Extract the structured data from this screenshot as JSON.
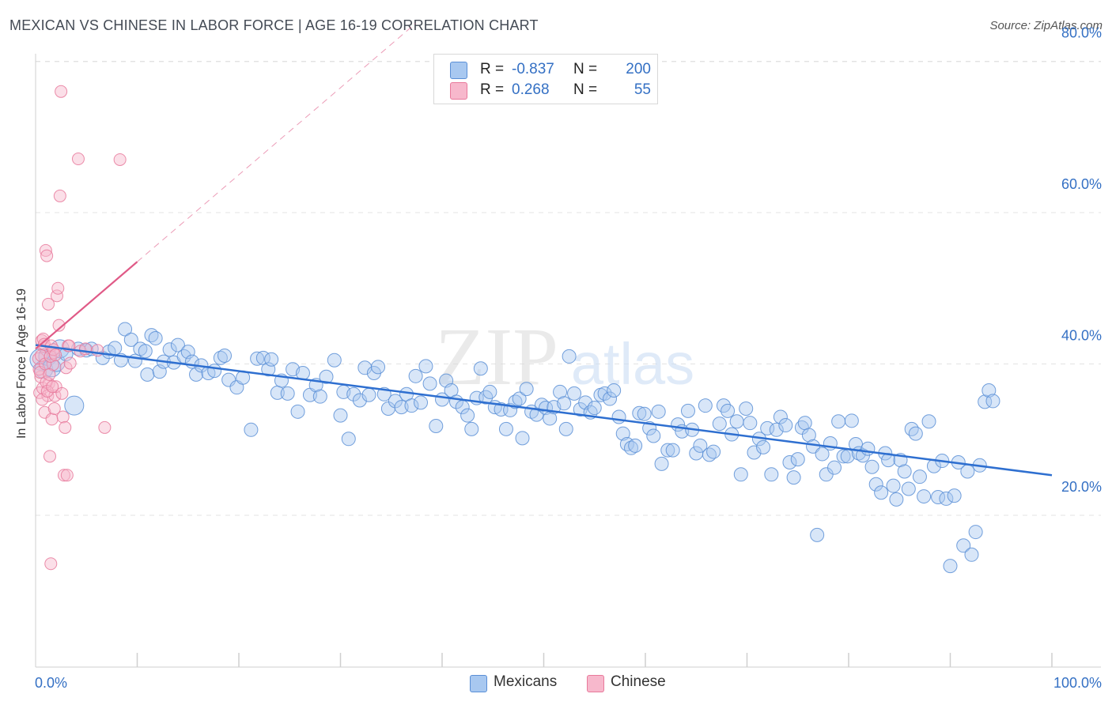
{
  "title": "MEXICAN VS CHINESE IN LABOR FORCE | AGE 16-19 CORRELATION CHART",
  "source": "Source: ZipAtlas.com",
  "watermark": {
    "zip": "ZIP",
    "atlas": "atlas"
  },
  "legend": [
    {
      "r_label": "R =",
      "r_value": "-0.837",
      "n_label": "N =",
      "n_value": "200"
    },
    {
      "r_label": "R =",
      "r_value": "0.268",
      "n_label": "N =",
      "n_value": "55"
    }
  ],
  "bottom_legend": [
    "Mexicans",
    "Chinese"
  ],
  "colors": {
    "mexicans_fill": "#a8c8f0",
    "mexicans_stroke": "#5a8fd6",
    "mexicans_line": "#2e6fd0",
    "chinese_fill": "#f7b8cc",
    "chinese_stroke": "#e8799b",
    "chinese_line": "#e05a87",
    "grid": "#e3e3e3",
    "tick_label": "#3470c4"
  },
  "chart_data": {
    "type": "scatter",
    "title": "MEXICAN VS CHINESE IN LABOR FORCE | AGE 16-19 CORRELATION CHART",
    "xlabel": "",
    "ylabel": "In Labor Force | Age 16-19",
    "xlim": [
      0,
      100
    ],
    "ylim": [
      0,
      84
    ],
    "x_tick_labels": [
      "0.0%",
      "100.0%"
    ],
    "y_ticks": [
      20,
      40,
      60,
      80
    ],
    "y_tick_labels": [
      "20.0%",
      "40.0%",
      "60.0%",
      "80.0%"
    ],
    "grid": true,
    "series": [
      {
        "name": "Mexicans",
        "R": -0.837,
        "N": 200,
        "trend": {
          "x": [
            0,
            100
          ],
          "y": [
            42.5,
            25.3
          ],
          "style": "solid"
        },
        "points": [
          [
            0.5,
            40.6
          ],
          [
            0.8,
            39.3
          ],
          [
            1.2,
            41.0
          ],
          [
            1.6,
            39.5
          ],
          [
            2.0,
            40.2
          ],
          [
            2.4,
            42.0
          ],
          [
            3.0,
            41.3
          ],
          [
            3.8,
            34.5
          ],
          [
            4.2,
            42.0
          ],
          [
            5.0,
            41.8
          ],
          [
            5.5,
            42.0
          ],
          [
            6.6,
            40.8
          ],
          [
            7.2,
            41.6
          ],
          [
            7.8,
            42.1
          ],
          [
            8.4,
            40.5
          ],
          [
            8.8,
            44.6
          ],
          [
            9.4,
            43.2
          ],
          [
            9.8,
            40.4
          ],
          [
            10.3,
            42.0
          ],
          [
            10.8,
            41.7
          ],
          [
            11.0,
            38.6
          ],
          [
            11.4,
            43.8
          ],
          [
            11.8,
            43.4
          ],
          [
            12.2,
            39.0
          ],
          [
            12.6,
            40.3
          ],
          [
            13.2,
            41.9
          ],
          [
            13.6,
            40.2
          ],
          [
            14.0,
            42.5
          ],
          [
            14.6,
            41.0
          ],
          [
            15.0,
            41.6
          ],
          [
            15.4,
            40.3
          ],
          [
            15.8,
            38.6
          ],
          [
            16.3,
            39.8
          ],
          [
            17.0,
            38.8
          ],
          [
            17.6,
            39.1
          ],
          [
            18.2,
            40.8
          ],
          [
            18.6,
            41.1
          ],
          [
            19.0,
            37.9
          ],
          [
            19.8,
            36.9
          ],
          [
            20.4,
            38.2
          ],
          [
            21.2,
            31.3
          ],
          [
            21.8,
            40.7
          ],
          [
            22.4,
            40.8
          ],
          [
            22.9,
            39.3
          ],
          [
            23.2,
            40.6
          ],
          [
            23.8,
            36.2
          ],
          [
            24.2,
            37.8
          ],
          [
            24.8,
            36.1
          ],
          [
            25.3,
            39.3
          ],
          [
            25.8,
            33.7
          ],
          [
            26.3,
            38.8
          ],
          [
            27.0,
            35.9
          ],
          [
            27.6,
            37.2
          ],
          [
            28.0,
            35.7
          ],
          [
            28.6,
            38.3
          ],
          [
            29.4,
            40.5
          ],
          [
            30.0,
            33.2
          ],
          [
            30.3,
            36.3
          ],
          [
            30.8,
            30.1
          ],
          [
            31.3,
            36.0
          ],
          [
            31.9,
            35.2
          ],
          [
            32.4,
            39.5
          ],
          [
            32.8,
            35.9
          ],
          [
            33.3,
            38.8
          ],
          [
            33.7,
            39.6
          ],
          [
            34.3,
            36.0
          ],
          [
            34.7,
            34.1
          ],
          [
            35.4,
            35.1
          ],
          [
            36.0,
            34.3
          ],
          [
            36.5,
            36.0
          ],
          [
            37.0,
            34.5
          ],
          [
            37.4,
            38.4
          ],
          [
            37.9,
            34.9
          ],
          [
            38.4,
            39.7
          ],
          [
            38.8,
            37.4
          ],
          [
            39.4,
            31.8
          ],
          [
            40.0,
            35.3
          ],
          [
            40.4,
            37.8
          ],
          [
            40.9,
            36.5
          ],
          [
            41.4,
            35.0
          ],
          [
            42.0,
            34.3
          ],
          [
            42.5,
            33.2
          ],
          [
            42.9,
            31.4
          ],
          [
            43.4,
            35.5
          ],
          [
            43.8,
            39.4
          ],
          [
            44.3,
            35.6
          ],
          [
            44.7,
            36.3
          ],
          [
            45.2,
            34.3
          ],
          [
            45.8,
            34.0
          ],
          [
            46.3,
            31.4
          ],
          [
            46.7,
            33.9
          ],
          [
            47.2,
            35.0
          ],
          [
            47.6,
            35.4
          ],
          [
            47.9,
            30.2
          ],
          [
            48.3,
            36.7
          ],
          [
            48.8,
            33.7
          ],
          [
            49.3,
            33.3
          ],
          [
            49.8,
            34.6
          ],
          [
            50.2,
            34.2
          ],
          [
            50.6,
            32.8
          ],
          [
            51.0,
            34.3
          ],
          [
            51.6,
            36.3
          ],
          [
            52.0,
            34.8
          ],
          [
            52.2,
            31.4
          ],
          [
            52.5,
            41.0
          ],
          [
            53.0,
            36.1
          ],
          [
            53.6,
            34.0
          ],
          [
            54.1,
            34.9
          ],
          [
            54.6,
            33.6
          ],
          [
            55.0,
            34.2
          ],
          [
            55.6,
            35.9
          ],
          [
            56.0,
            36.1
          ],
          [
            56.5,
            35.4
          ],
          [
            56.9,
            36.5
          ],
          [
            57.4,
            33.0
          ],
          [
            57.8,
            30.8
          ],
          [
            58.2,
            29.4
          ],
          [
            58.6,
            28.9
          ],
          [
            59.0,
            29.2
          ],
          [
            59.4,
            33.5
          ],
          [
            59.9,
            33.4
          ],
          [
            60.4,
            31.5
          ],
          [
            60.8,
            30.5
          ],
          [
            61.3,
            33.7
          ],
          [
            61.6,
            26.8
          ],
          [
            62.2,
            28.6
          ],
          [
            62.7,
            28.6
          ],
          [
            63.2,
            32.0
          ],
          [
            63.6,
            31.1
          ],
          [
            64.2,
            33.8
          ],
          [
            64.6,
            31.3
          ],
          [
            65.0,
            28.2
          ],
          [
            65.4,
            29.2
          ],
          [
            65.9,
            34.5
          ],
          [
            66.3,
            28.0
          ],
          [
            66.7,
            28.4
          ],
          [
            67.3,
            32.1
          ],
          [
            67.7,
            34.5
          ],
          [
            68.1,
            33.8
          ],
          [
            68.5,
            30.7
          ],
          [
            69.0,
            32.4
          ],
          [
            69.4,
            25.4
          ],
          [
            69.9,
            34.1
          ],
          [
            70.3,
            32.2
          ],
          [
            70.7,
            28.3
          ],
          [
            71.2,
            30.1
          ],
          [
            71.6,
            29.0
          ],
          [
            72.0,
            31.5
          ],
          [
            72.4,
            25.4
          ],
          [
            72.9,
            31.3
          ],
          [
            73.3,
            33.0
          ],
          [
            73.8,
            31.9
          ],
          [
            74.2,
            27.0
          ],
          [
            74.6,
            25.0
          ],
          [
            75.0,
            27.4
          ],
          [
            75.4,
            31.6
          ],
          [
            75.7,
            32.2
          ],
          [
            76.1,
            30.6
          ],
          [
            76.5,
            29.1
          ],
          [
            76.9,
            17.4
          ],
          [
            77.4,
            28.1
          ],
          [
            77.8,
            25.4
          ],
          [
            78.2,
            29.5
          ],
          [
            78.6,
            26.3
          ],
          [
            79.0,
            32.4
          ],
          [
            79.5,
            27.8
          ],
          [
            79.9,
            27.8
          ],
          [
            80.3,
            32.5
          ],
          [
            80.7,
            29.4
          ],
          [
            81.0,
            28.2
          ],
          [
            81.4,
            27.9
          ],
          [
            81.9,
            28.8
          ],
          [
            82.3,
            26.4
          ],
          [
            82.7,
            24.1
          ],
          [
            83.2,
            23.0
          ],
          [
            83.6,
            28.2
          ],
          [
            83.9,
            27.3
          ],
          [
            84.4,
            23.9
          ],
          [
            84.7,
            22.1
          ],
          [
            85.1,
            27.3
          ],
          [
            85.5,
            25.8
          ],
          [
            85.9,
            23.5
          ],
          [
            86.2,
            31.4
          ],
          [
            86.6,
            30.8
          ],
          [
            87.0,
            25.1
          ],
          [
            87.4,
            22.5
          ],
          [
            87.9,
            32.4
          ],
          [
            88.4,
            26.5
          ],
          [
            88.8,
            22.4
          ],
          [
            89.2,
            27.2
          ],
          [
            89.6,
            22.2
          ],
          [
            90.0,
            13.3
          ],
          [
            90.4,
            22.6
          ],
          [
            90.8,
            27.0
          ],
          [
            91.3,
            16.0
          ],
          [
            91.7,
            25.8
          ],
          [
            92.1,
            14.8
          ],
          [
            92.5,
            17.8
          ],
          [
            92.9,
            26.6
          ],
          [
            93.4,
            35.0
          ],
          [
            93.8,
            36.5
          ],
          [
            94.2,
            35.1
          ]
        ]
      },
      {
        "name": "Chinese",
        "R": 0.268,
        "N": 55,
        "trend": {
          "x": [
            0,
            10,
            100
          ],
          "y": [
            42.0,
            53.5,
            148.0
          ],
          "style": "solid-then-dashed",
          "solid_until_x": 10
        },
        "points": [
          [
            0.3,
            40.7
          ],
          [
            0.4,
            36.2
          ],
          [
            0.5,
            38.3
          ],
          [
            0.6,
            43.1
          ],
          [
            0.7,
            36.8
          ],
          [
            0.8,
            42.3
          ],
          [
            0.9,
            33.6
          ],
          [
            1.0,
            55.0
          ],
          [
            1.1,
            54.3
          ],
          [
            1.2,
            35.8
          ],
          [
            1.3,
            37.4
          ],
          [
            1.4,
            27.8
          ],
          [
            1.5,
            13.6
          ],
          [
            1.6,
            32.7
          ],
          [
            1.7,
            39.9
          ],
          [
            1.8,
            41.5
          ],
          [
            1.9,
            35.8
          ],
          [
            2.0,
            37.0
          ],
          [
            2.1,
            49.0
          ],
          [
            2.2,
            50.0
          ],
          [
            2.3,
            45.1
          ],
          [
            2.4,
            62.2
          ],
          [
            2.5,
            76.0
          ],
          [
            2.6,
            36.1
          ],
          [
            2.7,
            33.0
          ],
          [
            2.8,
            25.3
          ],
          [
            2.9,
            31.6
          ],
          [
            3.0,
            39.5
          ],
          [
            3.1,
            25.3
          ],
          [
            3.2,
            42.4
          ],
          [
            3.3,
            42.4
          ],
          [
            3.4,
            40.1
          ],
          [
            4.2,
            67.1
          ],
          [
            4.4,
            41.7
          ],
          [
            4.9,
            42.0
          ],
          [
            6.1,
            41.8
          ],
          [
            6.8,
            31.6
          ],
          [
            8.3,
            67.0
          ],
          [
            0.35,
            39.3
          ],
          [
            0.45,
            38.9
          ],
          [
            0.55,
            41.1
          ],
          [
            0.65,
            35.3
          ],
          [
            0.75,
            43.3
          ],
          [
            0.85,
            42.6
          ],
          [
            0.95,
            40.0
          ],
          [
            1.05,
            37.6
          ],
          [
            1.15,
            36.4
          ],
          [
            1.25,
            47.9
          ],
          [
            1.35,
            38.6
          ],
          [
            1.45,
            41.0
          ],
          [
            1.55,
            42.4
          ],
          [
            1.65,
            37.0
          ],
          [
            1.75,
            41.9
          ],
          [
            1.85,
            34.1
          ],
          [
            1.95,
            41.2
          ]
        ]
      }
    ]
  }
}
